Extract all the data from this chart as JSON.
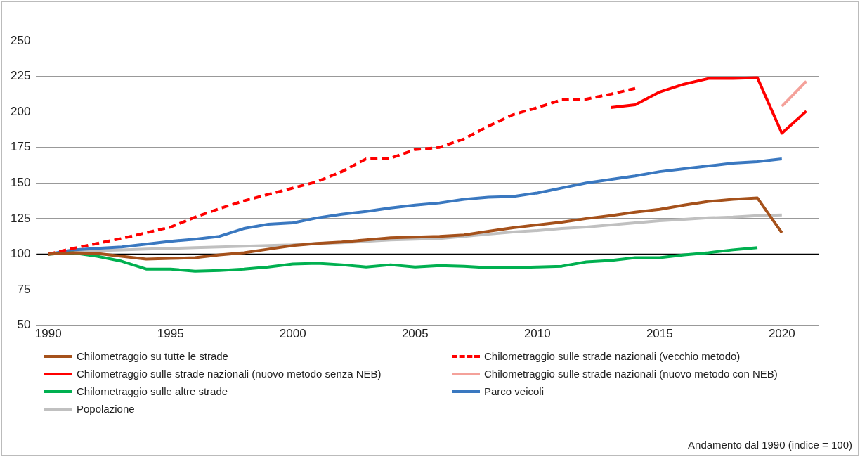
{
  "chart_data": {
    "type": "line",
    "x": [
      1990,
      1991,
      1992,
      1993,
      1994,
      1995,
      1996,
      1997,
      1998,
      1999,
      2000,
      2001,
      2002,
      2003,
      2004,
      2005,
      2006,
      2007,
      2008,
      2009,
      2010,
      2011,
      2012,
      2013,
      2014,
      2015,
      2016,
      2017,
      2018,
      2019,
      2020,
      2021
    ],
    "series": [
      {
        "name": "Chilometraggio su tutte le strade",
        "color": "#a5511b",
        "values": [
          100,
          101,
          100.5,
          98.5,
          96.5,
          97,
          97.5,
          99.5,
          101,
          103.5,
          106,
          107.5,
          108.5,
          110,
          111.5,
          112,
          112.5,
          113.5,
          116,
          118.5,
          120.5,
          122.5,
          125,
          127,
          129.5,
          131.5,
          134.5,
          137,
          138.5,
          139.5,
          115,
          null
        ]
      },
      {
        "name": "Chilometraggio sulle strade nazionali (vecchio metodo)",
        "color": "#ff0000",
        "line_style": "dashed",
        "values": [
          100,
          104,
          107.5,
          111,
          115,
          119,
          126,
          132,
          137.5,
          142,
          146.5,
          151,
          158,
          167,
          167.5,
          173.5,
          175,
          181,
          190,
          198,
          203,
          208.5,
          209,
          212.5,
          216.5,
          null,
          null,
          null,
          null,
          null,
          null,
          null
        ]
      },
      {
        "name": "Chilometraggio sulle strade nazionali (nuovo metodo senza NEB)",
        "color": "#ff0000",
        "values": [
          null,
          null,
          null,
          null,
          null,
          null,
          null,
          null,
          null,
          null,
          null,
          null,
          null,
          null,
          null,
          null,
          null,
          null,
          null,
          null,
          null,
          null,
          null,
          203,
          205,
          214,
          219.5,
          223.5,
          223.5,
          224,
          185,
          200.5
        ]
      },
      {
        "name": "Chilometraggio sulle strade nazionali (nuovo metodo con NEB)",
        "color": "#f4a19a",
        "values": [
          null,
          null,
          null,
          null,
          null,
          null,
          null,
          null,
          null,
          null,
          null,
          null,
          null,
          null,
          null,
          null,
          null,
          null,
          null,
          null,
          null,
          null,
          null,
          null,
          null,
          null,
          null,
          null,
          null,
          null,
          204,
          221.5
        ]
      },
      {
        "name": "Chilometraggio sulle altre strade",
        "color": "#00b050",
        "values": [
          100,
          101,
          98.5,
          95,
          89.5,
          89.5,
          88,
          88.5,
          89.5,
          91,
          93,
          93.5,
          92.5,
          91,
          92.5,
          91,
          92,
          91.5,
          90.5,
          90.5,
          91,
          91.5,
          94.5,
          95.5,
          97.5,
          97.5,
          99.5,
          101,
          103,
          104.5,
          null,
          null
        ]
      },
      {
        "name": "Parco veicoli",
        "color": "#3a78c0",
        "values": [
          100,
          103,
          104,
          105,
          107,
          109,
          110.5,
          112.5,
          118,
          121,
          122,
          125.5,
          128,
          130,
          132.5,
          134.5,
          136,
          138.5,
          140,
          140.5,
          143,
          146.5,
          150,
          152.5,
          155,
          158,
          160,
          162,
          164,
          165,
          167,
          null
        ]
      },
      {
        "name": "Popolazione",
        "color": "#c0c0c0",
        "values": [
          100,
          101.5,
          102.5,
          103,
          103.5,
          104,
          104.5,
          105,
          105.5,
          106,
          106.5,
          107.5,
          108,
          109,
          110,
          110.5,
          111,
          112.5,
          114,
          115.5,
          116.5,
          118,
          119,
          120.5,
          122,
          123.5,
          124.5,
          125.5,
          126,
          127,
          127.5,
          null
        ]
      }
    ],
    "xlim": [
      1989.5,
      2021.5
    ],
    "xticks": [
      1990,
      1995,
      2000,
      2005,
      2010,
      2015,
      2020
    ],
    "ylim": [
      50,
      250
    ],
    "yticks": [
      50,
      75,
      100,
      125,
      150,
      175,
      200,
      225,
      250
    ],
    "ref_lines": [
      {
        "axis": "y",
        "value": 100,
        "color": "#000000"
      }
    ],
    "grid": "y",
    "legend": "bottom",
    "marker": "none",
    "annotations": [
      "Andamento dal 1990 (indice = 100)"
    ]
  }
}
